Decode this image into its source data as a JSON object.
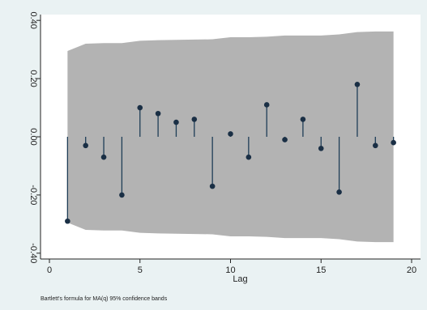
{
  "chart_data": {
    "type": "stem",
    "title": "",
    "xlabel": "Lag",
    "ylabel": "",
    "note": "Bartlett's formula for MA(q) 95% confidence bands",
    "xlim": [
      0,
      20
    ],
    "ylim": [
      -0.42,
      0.42
    ],
    "x_ticks": [
      0,
      5,
      10,
      15,
      20
    ],
    "x_tick_labels": [
      "0",
      "5",
      "10",
      "15",
      "20"
    ],
    "y_ticks": [
      -0.4,
      -0.2,
      0.0,
      0.2,
      0.4
    ],
    "y_tick_labels": [
      "-0.40",
      "-0.20",
      "0.00",
      "0.20",
      "0.40"
    ],
    "grid": false,
    "legend": "none",
    "colors": {
      "band": "#b3b3b3",
      "stem": "#1e3d57",
      "marker": "#1a2f45",
      "plot_bg": "#ffffff",
      "outer_bg": "#eaf2f3"
    },
    "series": [
      {
        "x": [
          1,
          2,
          3,
          4,
          5,
          6,
          7,
          8,
          9,
          10,
          11,
          12,
          13,
          14,
          15,
          16,
          17,
          18,
          19
        ],
        "values": [
          -0.29,
          -0.03,
          -0.07,
          -0.2,
          0.1,
          0.08,
          0.05,
          0.06,
          -0.17,
          0.01,
          -0.07,
          0.11,
          -0.01,
          0.06,
          -0.04,
          -0.19,
          0.18,
          -0.03,
          -0.02
        ]
      }
    ],
    "confidence_band": {
      "x": [
        1,
        2,
        3,
        4,
        5,
        6,
        7,
        8,
        9,
        10,
        11,
        12,
        13,
        14,
        15,
        16,
        17,
        18,
        19
      ],
      "upper": [
        0.295,
        0.32,
        0.322,
        0.322,
        0.33,
        0.332,
        0.333,
        0.334,
        0.335,
        0.342,
        0.342,
        0.344,
        0.348,
        0.348,
        0.348,
        0.352,
        0.36,
        0.362,
        0.362
      ],
      "lower": [
        -0.295,
        -0.32,
        -0.322,
        -0.322,
        -0.33,
        -0.332,
        -0.333,
        -0.334,
        -0.335,
        -0.342,
        -0.342,
        -0.344,
        -0.348,
        -0.348,
        -0.348,
        -0.352,
        -0.36,
        -0.362,
        -0.362
      ]
    }
  }
}
